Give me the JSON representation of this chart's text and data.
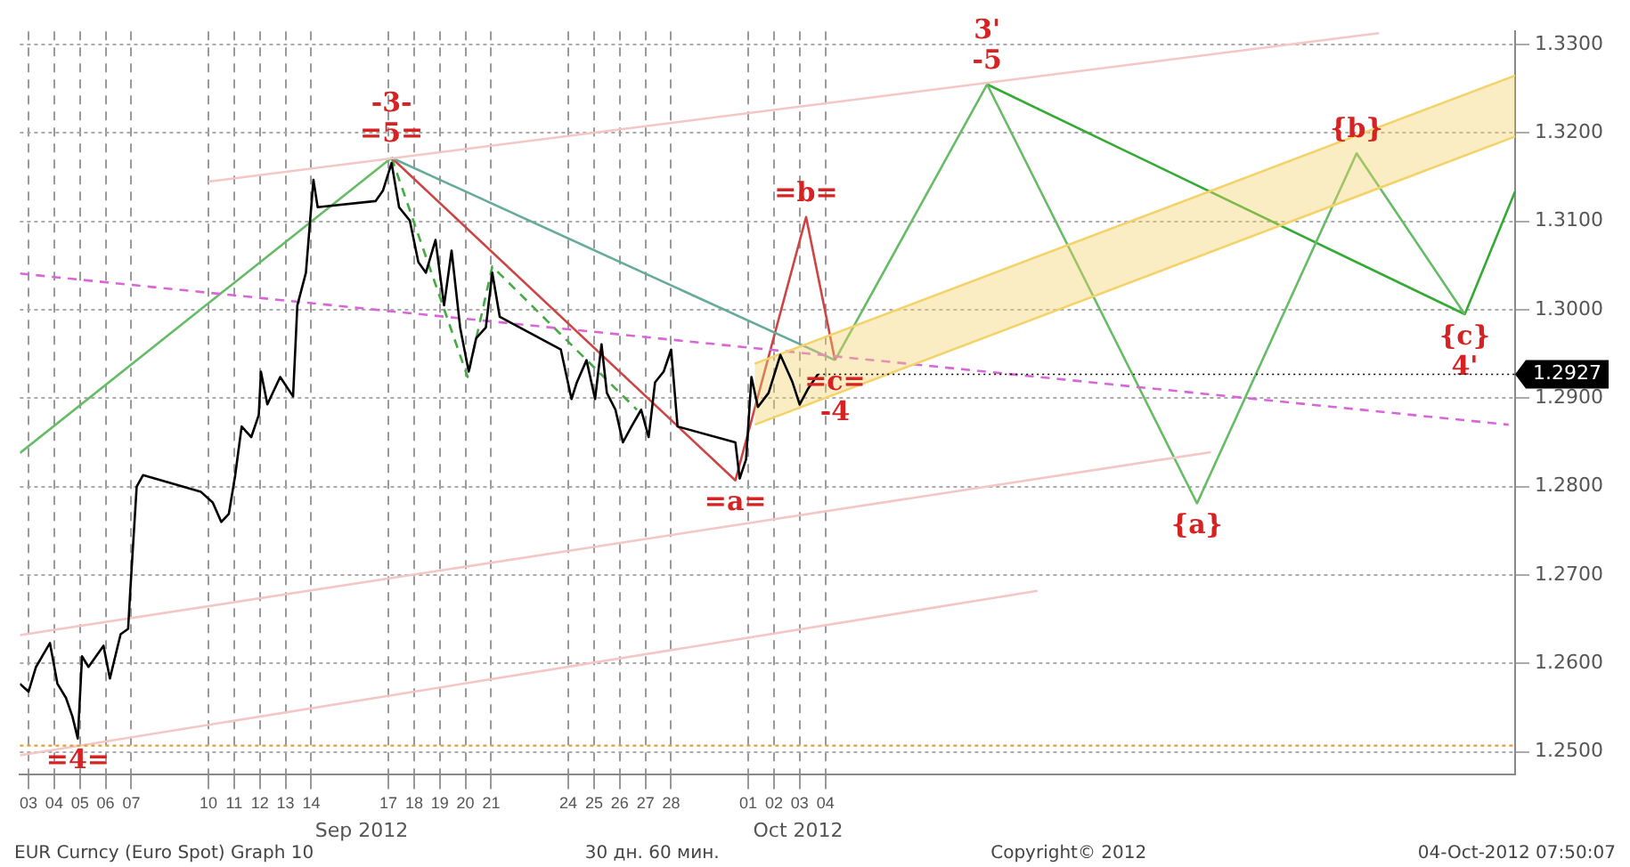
{
  "chart_data": {
    "type": "line",
    "xlim": [
      "2012-09-03T04:00",
      "2012-10-31T08:00"
    ],
    "xticks": [
      {
        "value": "2012-09-03T12:00",
        "label": "03"
      },
      {
        "value": "2012-09-04T12:00",
        "label": "04"
      },
      {
        "value": "2012-09-05T12:00",
        "label": "05"
      },
      {
        "value": "2012-09-06T12:00",
        "label": "06"
      },
      {
        "value": "2012-09-07T12:00",
        "label": "07"
      },
      {
        "value": "2012-09-10T12:00",
        "label": "10"
      },
      {
        "value": "2012-09-11T12:00",
        "label": "11"
      },
      {
        "value": "2012-09-12T12:00",
        "label": "12"
      },
      {
        "value": "2012-09-13T12:00",
        "label": "13"
      },
      {
        "value": "2012-09-14T12:00",
        "label": "14"
      },
      {
        "value": "2012-09-17T12:00",
        "label": "17"
      },
      {
        "value": "2012-09-18T12:00",
        "label": "18"
      },
      {
        "value": "2012-09-19T12:00",
        "label": "19"
      },
      {
        "value": "2012-09-20T12:00",
        "label": "20"
      },
      {
        "value": "2012-09-21T12:00",
        "label": "21"
      },
      {
        "value": "2012-09-24T12:00",
        "label": "24"
      },
      {
        "value": "2012-09-25T12:00",
        "label": "25"
      },
      {
        "value": "2012-09-26T12:00",
        "label": "26"
      },
      {
        "value": "2012-09-27T12:00",
        "label": "27"
      },
      {
        "value": "2012-09-28T12:00",
        "label": "28"
      },
      {
        "value": "2012-10-01T12:00",
        "label": "01"
      },
      {
        "value": "2012-10-02T12:00",
        "label": "02"
      },
      {
        "value": "2012-10-03T12:00",
        "label": "03"
      },
      {
        "value": "2012-10-04T12:00",
        "label": "04"
      }
    ],
    "ylim": [
      1.2474,
      1.3315
    ],
    "yticks": [
      {
        "value": 1.25,
        "label": "1.2500"
      },
      {
        "value": 1.26,
        "label": "1.2600"
      },
      {
        "value": 1.27,
        "label": "1.2700"
      },
      {
        "value": 1.28,
        "label": "1.2800"
      },
      {
        "value": 1.29,
        "label": "1.2900"
      },
      {
        "value": 1.3,
        "label": "1.3000"
      },
      {
        "value": 1.31,
        "label": "1.3100"
      },
      {
        "value": 1.32,
        "label": "1.3200"
      },
      {
        "value": 1.33,
        "label": "1.3300"
      }
    ],
    "grid": true,
    "legend": false,
    "series": [
      {
        "color": "#000000",
        "x": [
          "2012-09-03T04:00",
          "2012-09-03T12:00",
          "2012-09-03T19:00",
          "2012-09-04T08:00",
          "2012-09-04T15:00",
          "2012-09-04T23:00",
          "2012-09-05T05:00",
          "2012-09-05T10:00",
          "2012-09-05T14:00",
          "2012-09-05T20:00",
          "2012-09-06T10:00",
          "2012-09-06T16:00",
          "2012-09-07T02:00",
          "2012-09-07T09:00",
          "2012-09-07T11:00",
          "2012-09-07T17:00",
          "2012-09-07T23:00",
          "2012-09-10T05:00",
          "2012-09-10T16:00",
          "2012-09-11T00:00",
          "2012-09-11T07:00",
          "2012-09-11T13:00",
          "2012-09-11T19:00",
          "2012-09-12T04:00",
          "2012-09-12T11:00",
          "2012-09-12T13:00",
          "2012-09-12T19:00",
          "2012-09-13T07:00",
          "2012-09-13T19:00",
          "2012-09-13T23:00",
          "2012-09-14T07:00",
          "2012-09-14T14:00",
          "2012-09-14T18:00",
          "2012-09-17T00:00",
          "2012-09-17T07:00",
          "2012-09-17T15:00",
          "2012-09-17T22:00",
          "2012-09-18T08:00",
          "2012-09-18T16:00",
          "2012-09-18T23:00",
          "2012-09-19T08:00",
          "2012-09-19T16:00",
          "2012-09-19T23:00",
          "2012-09-20T07:00",
          "2012-09-20T15:00",
          "2012-09-20T22:00",
          "2012-09-21T07:00",
          "2012-09-21T13:00",
          "2012-09-21T20:00",
          "2012-09-24T05:00",
          "2012-09-24T15:00",
          "2012-09-24T20:00",
          "2012-09-25T05:00",
          "2012-09-25T13:00",
          "2012-09-25T19:00",
          "2012-09-26T00:00",
          "2012-09-26T08:00",
          "2012-09-26T15:00",
          "2012-09-26T23:00",
          "2012-09-27T08:00",
          "2012-09-27T15:00",
          "2012-09-27T21:00",
          "2012-09-28T05:00",
          "2012-09-28T12:00",
          "2012-09-28T18:00",
          "2012-10-01T00:00",
          "2012-10-01T04:00",
          "2012-10-01T10:00",
          "2012-10-01T15:00",
          "2012-10-01T21:00",
          "2012-10-02T07:00",
          "2012-10-02T18:00",
          "2012-10-03T05:00",
          "2012-10-03T12:00",
          "2012-10-03T20:00",
          "2012-10-04T05:00"
        ],
        "values": [
          1.2577,
          1.2568,
          1.2596,
          1.2623,
          1.2577,
          1.2561,
          1.254,
          1.2515,
          1.2608,
          1.2596,
          1.262,
          1.2583,
          1.2633,
          1.2639,
          1.2682,
          1.28,
          1.2813,
          1.2794,
          1.2782,
          1.276,
          1.2769,
          1.2813,
          1.2868,
          1.2856,
          1.2881,
          1.293,
          1.2893,
          1.2924,
          1.2902,
          1.3005,
          1.3042,
          1.3147,
          1.3116,
          1.3123,
          1.3135,
          1.3166,
          1.3116,
          1.3101,
          1.3054,
          1.3042,
          1.3079,
          1.3005,
          1.3067,
          1.298,
          1.293,
          1.2968,
          1.298,
          1.3042,
          1.2992,
          1.2955,
          1.2899,
          1.2918,
          1.2943,
          1.2899,
          1.2961,
          1.2906,
          1.2887,
          1.285,
          1.2868,
          1.2887,
          1.2856,
          1.2918,
          1.293,
          1.2955,
          1.2868,
          1.285,
          1.2809,
          1.2831,
          1.2924,
          1.289,
          1.2906,
          1.2949,
          1.2919,
          1.2893,
          1.2911,
          1.2927
        ]
      },
      {
        "color": "#f3d36a",
        "x": [
          "2012-10-01T18:00",
          "2012-10-31T08:00"
        ],
        "values": [
          1.2939,
          1.3265
        ],
        "lower": [
          1.287,
          1.3196
        ],
        "upper": [
          1.2939,
          1.3265
        ]
      },
      {
        "color": "#f3d36a",
        "x": [
          "2012-10-01T18:00",
          "2012-10-31T08:00"
        ],
        "values": [
          1.287,
          1.3196
        ]
      },
      {
        "color": "#d966d9",
        "line_style": "dashed",
        "x": [
          "2012-09-03T04:00",
          "2012-10-31T02:00"
        ],
        "values": [
          1.3041,
          1.287
        ]
      },
      {
        "color": "#f4c6c6",
        "x": [
          "2012-09-10T12:00",
          "2012-10-26T01:00"
        ],
        "values": [
          1.3145,
          1.3313
        ]
      },
      {
        "color": "#f4c6c6",
        "x": [
          "2012-09-03T04:00",
          "2012-10-19T12:00"
        ],
        "values": [
          1.2632,
          1.2839
        ]
      },
      {
        "color": "#f4c6c6",
        "x": [
          "2012-09-03T04:00",
          "2012-10-12T18:00"
        ],
        "values": [
          1.2496,
          1.2682
        ]
      },
      {
        "color": "#66bb66",
        "x": [
          "2012-09-03T04:00",
          "2012-09-17T15:00"
        ],
        "values": [
          1.2838,
          1.3172
        ]
      },
      {
        "color": "#66aa99",
        "x": [
          "2012-09-17T15:00",
          "2012-10-04T21:00"
        ],
        "values": [
          1.3172,
          1.2943
        ]
      },
      {
        "color": "#cc4444",
        "x": [
          "2012-09-17T15:00",
          "2012-10-01T00:00",
          "2012-10-03T18:00",
          "2012-10-04T21:00"
        ],
        "values": [
          1.3172,
          1.2807,
          1.3105,
          1.2943
        ]
      },
      {
        "color": "#44aa44",
        "line_style": "dashed",
        "x": [
          "2012-09-17T15:00",
          "2012-09-20T14:00",
          "2012-09-21T13:00",
          "2012-09-27T04:00"
        ],
        "values": [
          1.3172,
          1.2924,
          1.3049,
          1.2887
        ]
      },
      {
        "color": "#66bb66",
        "x": [
          "2012-10-04T21:00",
          "2012-10-10T19:00",
          "2012-10-18T23:00",
          "2012-10-25T04:00",
          "2012-10-29T09:00"
        ],
        "values": [
          1.2943,
          1.3255,
          1.2781,
          1.3177,
          1.2995
        ]
      },
      {
        "color": "#33aa33",
        "x": [
          "2012-10-10T19:00",
          "2012-10-29T09:00",
          "2012-10-31T08:00"
        ],
        "values": [
          1.3255,
          1.2995,
          1.3134
        ]
      }
    ],
    "ref_lines": [
      {
        "axis": "y",
        "value": 1.2507,
        "color": "#e0a030",
        "line_style": "dotted"
      }
    ],
    "annotations": [
      {
        "text": "=4=",
        "x": "2012-09-05T10:00",
        "y": 1.2515
      },
      {
        "text": "=5=",
        "x": "2012-09-17T15:00",
        "y": 1.3172
      },
      {
        "text": "-3-",
        "x": "2012-09-17T15:00",
        "y": 1.3172
      },
      {
        "text": "=a=",
        "x": "2012-10-01T00:00",
        "y": 1.2807
      },
      {
        "text": "=b=",
        "x": "2012-10-03T18:00",
        "y": 1.3105
      },
      {
        "text": "=c=",
        "x": "2012-10-04T21:00",
        "y": 1.2943
      },
      {
        "text": "-4",
        "x": "2012-10-04T21:00",
        "y": 1.2943
      },
      {
        "text": "-5",
        "x": "2012-10-10T19:00",
        "y": 1.3255
      },
      {
        "text": "3'",
        "x": "2012-10-10T19:00",
        "y": 1.3255
      },
      {
        "text": "{a}",
        "x": "2012-10-18T23:00",
        "y": 1.2781
      },
      {
        "text": "{b}",
        "x": "2012-10-25T04:00",
        "y": 1.3177
      },
      {
        "text": "{c}",
        "x": "2012-10-29T09:00",
        "y": 1.2995
      },
      {
        "text": "4'",
        "x": "2012-10-29T09:00",
        "y": 1.2995
      },
      {
        "text": "1.2927",
        "x": "2012-10-04T05:00",
        "y": 1.2927
      },
      "Sep 2012",
      "Oct 2012",
      "EUR Curncy (Euro Spot) Graph 10",
      "30 дн. 60 мин.",
      "Copyright© 2012",
      "04-Oct-2012 07:50:07"
    ]
  }
}
